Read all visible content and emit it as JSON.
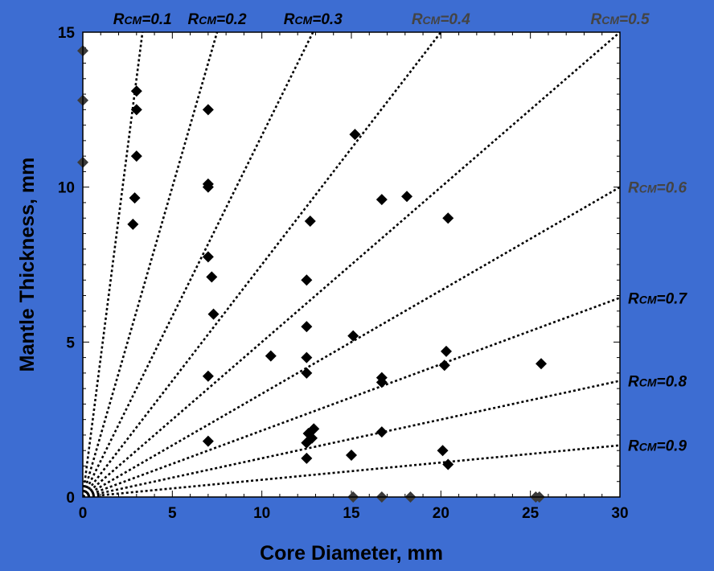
{
  "colors": {
    "background": "#3d6dd2",
    "plot_area": "#ffffff",
    "marker": "#000000",
    "edge_marker": "#3a3a3a",
    "line": "#000000",
    "label_dark": "#000000",
    "label_gray": "#444444"
  },
  "chart_data": {
    "type": "scatter",
    "title": "",
    "xlabel": "Core Diameter, mm",
    "ylabel": "Mantle Thickness, mm",
    "xlim": [
      0,
      30
    ],
    "ylim": [
      0,
      15
    ],
    "x_ticks": [
      "0",
      "5",
      "10",
      "15",
      "20",
      "25",
      "30"
    ],
    "y_ticks": [
      "0",
      "5",
      "10",
      "15"
    ],
    "grid": false,
    "points": [
      {
        "x": 0,
        "y": 14.4
      },
      {
        "x": 0,
        "y": 12.8
      },
      {
        "x": 0,
        "y": 10.8
      },
      {
        "x": 3.0,
        "y": 13.1
      },
      {
        "x": 3.0,
        "y": 12.5
      },
      {
        "x": 3.0,
        "y": 11.0
      },
      {
        "x": 2.9,
        "y": 9.65
      },
      {
        "x": 2.8,
        "y": 8.8
      },
      {
        "x": 7.0,
        "y": 12.5
      },
      {
        "x": 7.0,
        "y": 10.1
      },
      {
        "x": 7.0,
        "y": 10.0
      },
      {
        "x": 7.0,
        "y": 7.75
      },
      {
        "x": 7.2,
        "y": 7.1
      },
      {
        "x": 7.3,
        "y": 5.9
      },
      {
        "x": 7.0,
        "y": 3.9
      },
      {
        "x": 7.0,
        "y": 1.8
      },
      {
        "x": 10.5,
        "y": 4.55
      },
      {
        "x": 12.5,
        "y": 7.0
      },
      {
        "x": 12.5,
        "y": 5.5
      },
      {
        "x": 12.5,
        "y": 4.5
      },
      {
        "x": 12.5,
        "y": 4.0
      },
      {
        "x": 12.7,
        "y": 8.9
      },
      {
        "x": 12.9,
        "y": 2.2
      },
      {
        "x": 12.6,
        "y": 2.05
      },
      {
        "x": 12.8,
        "y": 1.9
      },
      {
        "x": 12.5,
        "y": 1.75
      },
      {
        "x": 12.5,
        "y": 1.25
      },
      {
        "x": 15.2,
        "y": 11.7
      },
      {
        "x": 15.1,
        "y": 5.2
      },
      {
        "x": 15.0,
        "y": 1.35
      },
      {
        "x": 16.7,
        "y": 9.6
      },
      {
        "x": 16.7,
        "y": 3.85
      },
      {
        "x": 16.7,
        "y": 3.7
      },
      {
        "x": 16.7,
        "y": 2.1
      },
      {
        "x": 18.1,
        "y": 9.7
      },
      {
        "x": 20.4,
        "y": 9.0
      },
      {
        "x": 20.3,
        "y": 4.7
      },
      {
        "x": 20.2,
        "y": 4.25
      },
      {
        "x": 20.1,
        "y": 1.5
      },
      {
        "x": 20.4,
        "y": 1.05
      },
      {
        "x": 25.6,
        "y": 4.3
      },
      {
        "x": 15.1,
        "y": 0
      },
      {
        "x": 16.7,
        "y": 0
      },
      {
        "x": 18.3,
        "y": 0
      },
      {
        "x": 25.3,
        "y": 0
      },
      {
        "x": 25.5,
        "y": 0
      }
    ],
    "reference_lines": [
      {
        "label_prefix": "R",
        "label_sub": "CM",
        "label_value": "=0.1",
        "slope": 4.5,
        "label_color": "dark"
      },
      {
        "label_prefix": "R",
        "label_sub": "CM",
        "label_value": "=0.2",
        "slope": 2.0,
        "label_color": "dark"
      },
      {
        "label_prefix": "R",
        "label_sub": "CM",
        "label_value": "=0.3",
        "slope": 1.1667,
        "label_color": "dark"
      },
      {
        "label_prefix": "R",
        "label_sub": "CM",
        "label_value": "=0.4",
        "slope": 0.75,
        "label_color": "gray"
      },
      {
        "label_prefix": "R",
        "label_sub": "CM",
        "label_value": "=0.5",
        "slope": 0.5,
        "label_color": "gray"
      },
      {
        "label_prefix": "R",
        "label_sub": "CM",
        "label_value": "=0.6",
        "slope": 0.3333,
        "label_color": "gray"
      },
      {
        "label_prefix": "R",
        "label_sub": "CM",
        "label_value": "=0.7",
        "slope": 0.2143,
        "label_color": "dark"
      },
      {
        "label_prefix": "R",
        "label_sub": "CM",
        "label_value": "=0.8",
        "slope": 0.125,
        "label_color": "dark"
      },
      {
        "label_prefix": "R",
        "label_sub": "CM",
        "label_value": "=0.9",
        "slope": 0.0556,
        "label_color": "dark"
      }
    ]
  }
}
